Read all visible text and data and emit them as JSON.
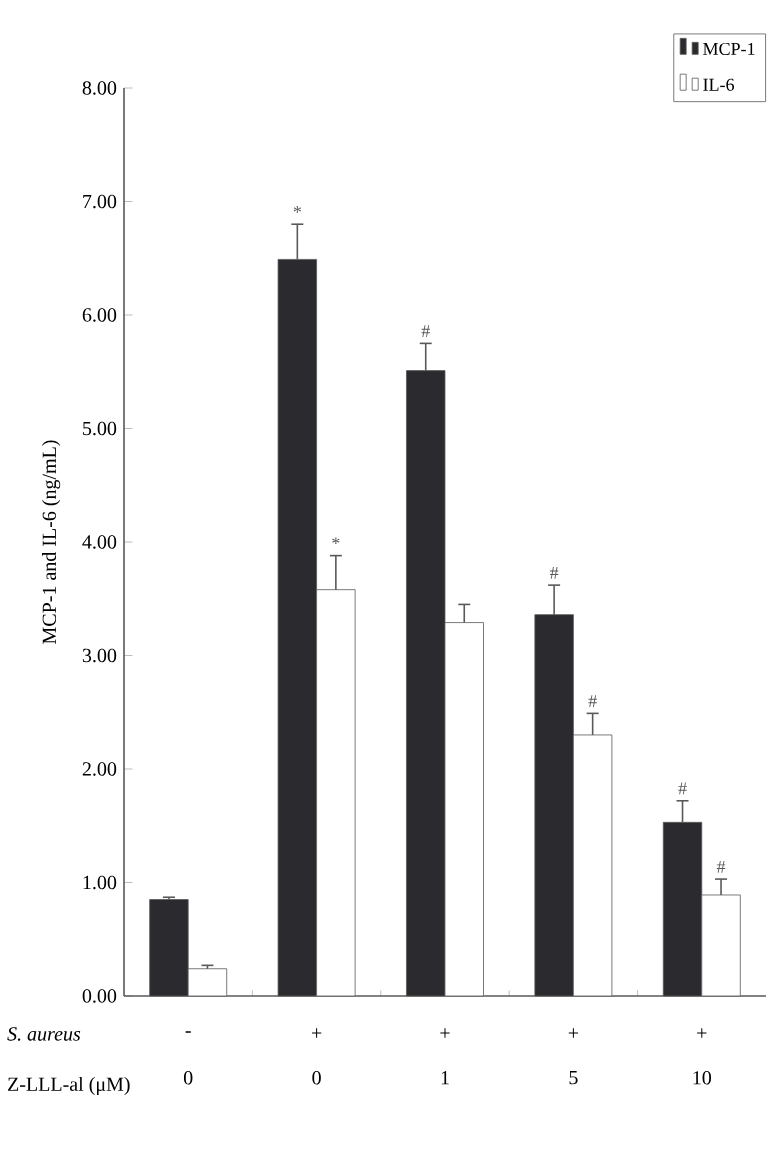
{
  "chart_data": {
    "type": "bar",
    "ylabel": "MCP-1 and IL-6 (ng/mL)",
    "xlabel": "Z-LLL-al (μM)",
    "categories": [
      "0",
      "0",
      "1",
      "5",
      "10"
    ],
    "series": [
      {
        "name": "MCP-1",
        "color": "#2b2b2f",
        "values": [
          0.85,
          6.49,
          5.51,
          3.36,
          1.53
        ],
        "errors": [
          0.02,
          0.31,
          0.24,
          0.26,
          0.19
        ],
        "value_labels": [
          null,
          "*",
          "#",
          "#",
          "#"
        ]
      },
      {
        "name": "IL-6",
        "color": "#ffffff",
        "values": [
          0.24,
          3.58,
          3.29,
          2.3,
          0.89
        ],
        "errors": [
          0.03,
          0.3,
          0.16,
          0.19,
          0.14
        ],
        "value_labels": [
          null,
          "*",
          null,
          "#",
          "#"
        ]
      }
    ],
    "ylim": [
      0,
      8
    ],
    "yticks": [
      {
        "value": 0,
        "label": "0.00"
      },
      {
        "value": 1,
        "label": "1.00"
      },
      {
        "value": 2,
        "label": "2.00"
      },
      {
        "value": 3,
        "label": "3.00"
      },
      {
        "value": 4,
        "label": "4.00"
      },
      {
        "value": 5,
        "label": "5.00"
      },
      {
        "value": 6,
        "label": "6.00"
      },
      {
        "value": 7,
        "label": "7.00"
      },
      {
        "value": 8,
        "label": "8.00"
      }
    ],
    "annotations": [
      "S. aureus",
      "-",
      "+",
      "+",
      "+",
      "+"
    ],
    "legend": "top right"
  }
}
